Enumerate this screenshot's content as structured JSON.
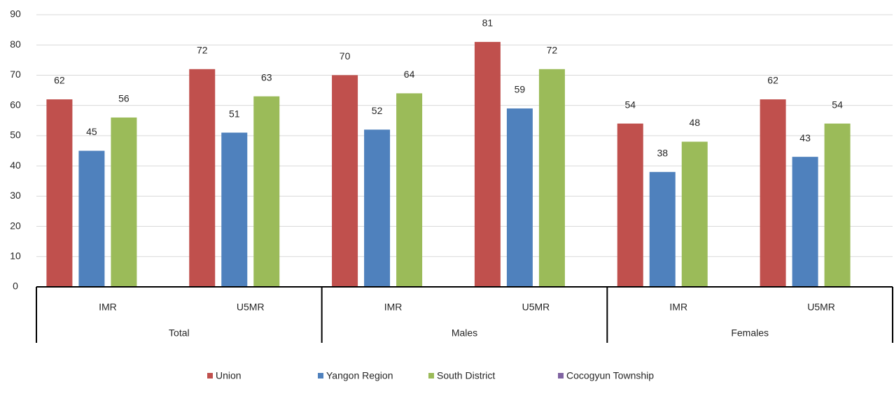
{
  "chart_data": {
    "type": "bar",
    "categories": [
      "IMR",
      "U5MR",
      "IMR",
      "U5MR",
      "IMR",
      "U5MR"
    ],
    "groups": [
      "Total",
      "Males",
      "Females"
    ],
    "series": [
      {
        "name": "Union",
        "color": "#c0504d",
        "values": [
          62,
          72,
          70,
          81,
          54,
          62
        ]
      },
      {
        "name": "Yangon Region",
        "color": "#4f81bd",
        "values": [
          45,
          51,
          52,
          59,
          38,
          43
        ]
      },
      {
        "name": "South District",
        "color": "#9bbb59",
        "values": [
          56,
          63,
          64,
          72,
          48,
          54
        ]
      },
      {
        "name": "Cocogyun Township",
        "color": "#8064a2",
        "values": [
          null,
          null,
          null,
          null,
          null,
          null
        ]
      }
    ],
    "ylim": [
      0,
      90
    ],
    "yticks": [
      0,
      10,
      20,
      30,
      40,
      50,
      60,
      70,
      80,
      90
    ],
    "grid": true,
    "legend": "bottom"
  }
}
